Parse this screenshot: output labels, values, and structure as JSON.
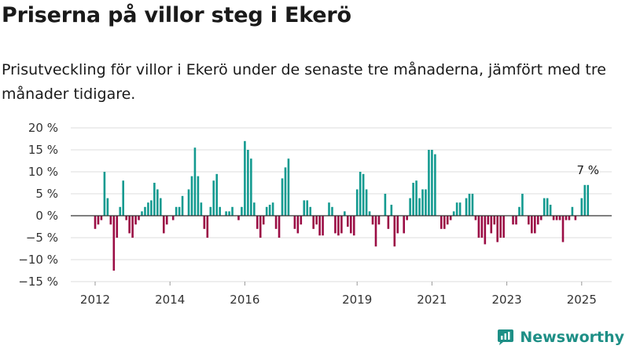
{
  "title": "Priserna på villor steg i Ekerö",
  "subtitle": "Prisutveckling för villor i Ekerö under de senaste tre månaderna, jämfört med tre månader tidigare.",
  "brand": {
    "name": "Newsworthy",
    "icon": "newsworthy-logo-icon",
    "color": "#1e8f86"
  },
  "colors": {
    "positive": "#139a90",
    "negative": "#9b0d45",
    "grid": "#dcdcdc",
    "zero_line": "#333333"
  },
  "chart_data": {
    "type": "bar",
    "title": "",
    "xlabel": "",
    "ylabel": "",
    "ylim": [
      -15,
      20
    ],
    "yticks": [
      -15,
      -10,
      -5,
      0,
      5,
      10,
      15,
      20
    ],
    "ytick_labels": [
      "−15 %",
      "−10 %",
      "−5 %",
      "0 %",
      "5 %",
      "10 %",
      "15 %",
      "20 %"
    ],
    "xticks": [
      2012,
      2014,
      2016,
      2019,
      2021,
      2023,
      2025
    ],
    "xtick_labels": [
      "2012",
      "2014",
      "2016",
      "2019",
      "2021",
      "2023",
      "2025"
    ],
    "grid": true,
    "annotation": "7 %",
    "series": [
      {
        "x": 2012.0,
        "values": [
          -3,
          -2,
          -1,
          10,
          4,
          -2,
          -12.5,
          -5,
          2,
          8,
          -1,
          -4,
          -5,
          -2,
          -1,
          1,
          2,
          3,
          3.5,
          7.5,
          6,
          4,
          -4,
          -2,
          0,
          -1,
          2,
          2,
          4.5,
          0,
          6,
          9,
          15.5,
          9,
          3,
          -3,
          -5,
          2,
          8,
          9.5,
          2,
          0,
          1,
          1,
          2,
          0,
          -1,
          2,
          17,
          15,
          13,
          3,
          -3,
          -5,
          -2,
          2,
          2.5,
          3,
          -3,
          -5,
          8.5,
          11,
          13,
          0,
          -3,
          -4,
          -2,
          3.5,
          3.5,
          2,
          -3,
          -2,
          -4.5,
          -4.5,
          0,
          3,
          2,
          -4,
          -4.5,
          -4,
          1,
          -2.5,
          -4,
          -4.5,
          6,
          10,
          9.5,
          6,
          1,
          -2,
          -7,
          -2,
          0,
          5,
          -3,
          2.5,
          -7,
          -4,
          0,
          -4,
          -1,
          4,
          7.5,
          8,
          4,
          6,
          6,
          15,
          15,
          14,
          0,
          -3,
          -3,
          -2,
          -1,
          1,
          3,
          3,
          0,
          4,
          5,
          5,
          -1,
          -5,
          -5,
          -6.5,
          -2,
          -4,
          -2,
          -6,
          -5,
          -5,
          0,
          0,
          -2,
          -2,
          2,
          5,
          0,
          -2,
          -4,
          -4,
          -2,
          -1,
          4,
          4,
          2.5,
          -1,
          -1,
          -1,
          -6,
          -1,
          -1,
          2,
          -1,
          0,
          4,
          7,
          7
        ]
      }
    ]
  }
}
